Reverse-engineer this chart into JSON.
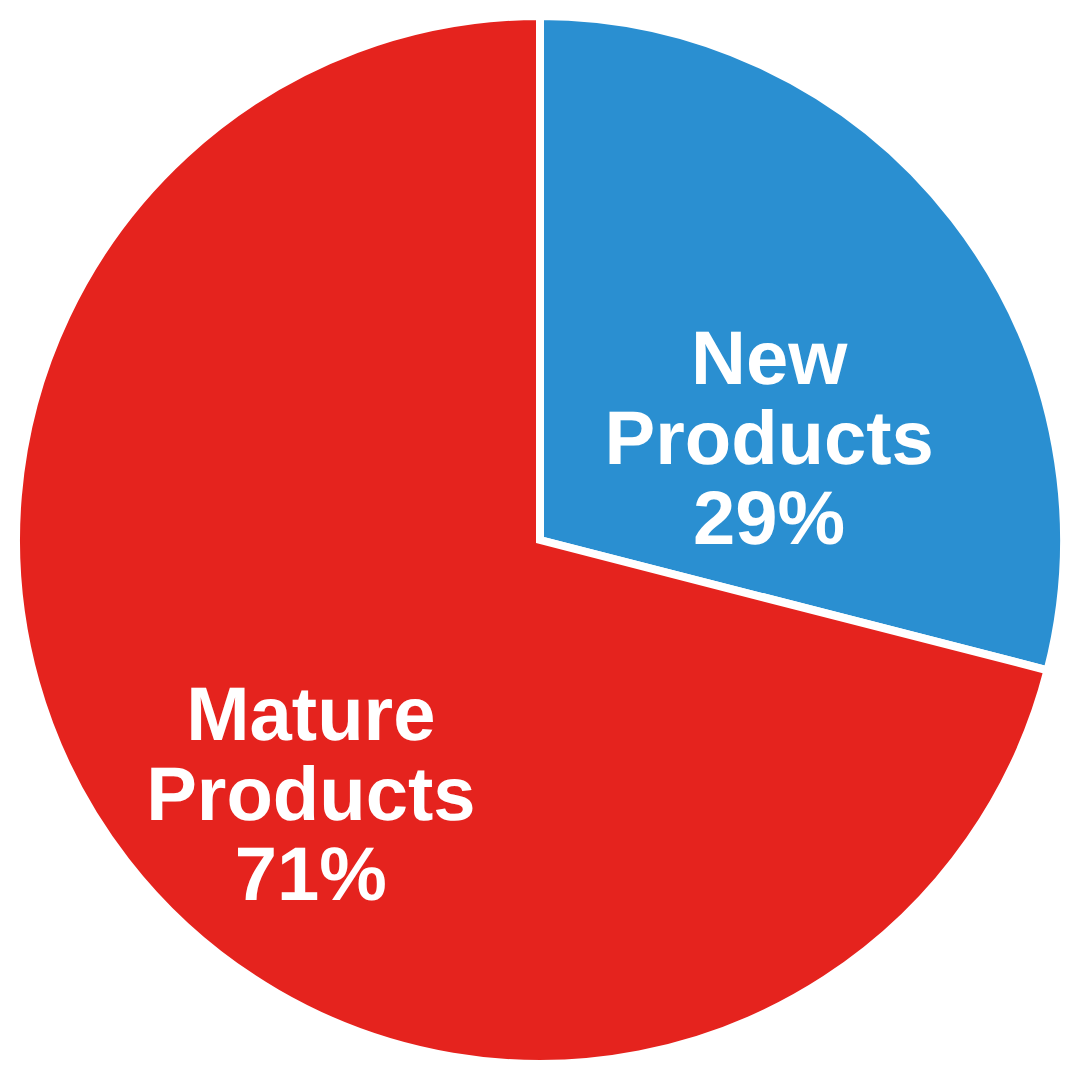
{
  "chart_data": {
    "type": "pie",
    "categories": [
      "New Products",
      "Mature Products"
    ],
    "values": [
      29,
      71
    ],
    "colors": [
      "#2a8fd1",
      "#e5231e"
    ],
    "value_labels": [
      "29%",
      "71%"
    ],
    "legend": false
  }
}
